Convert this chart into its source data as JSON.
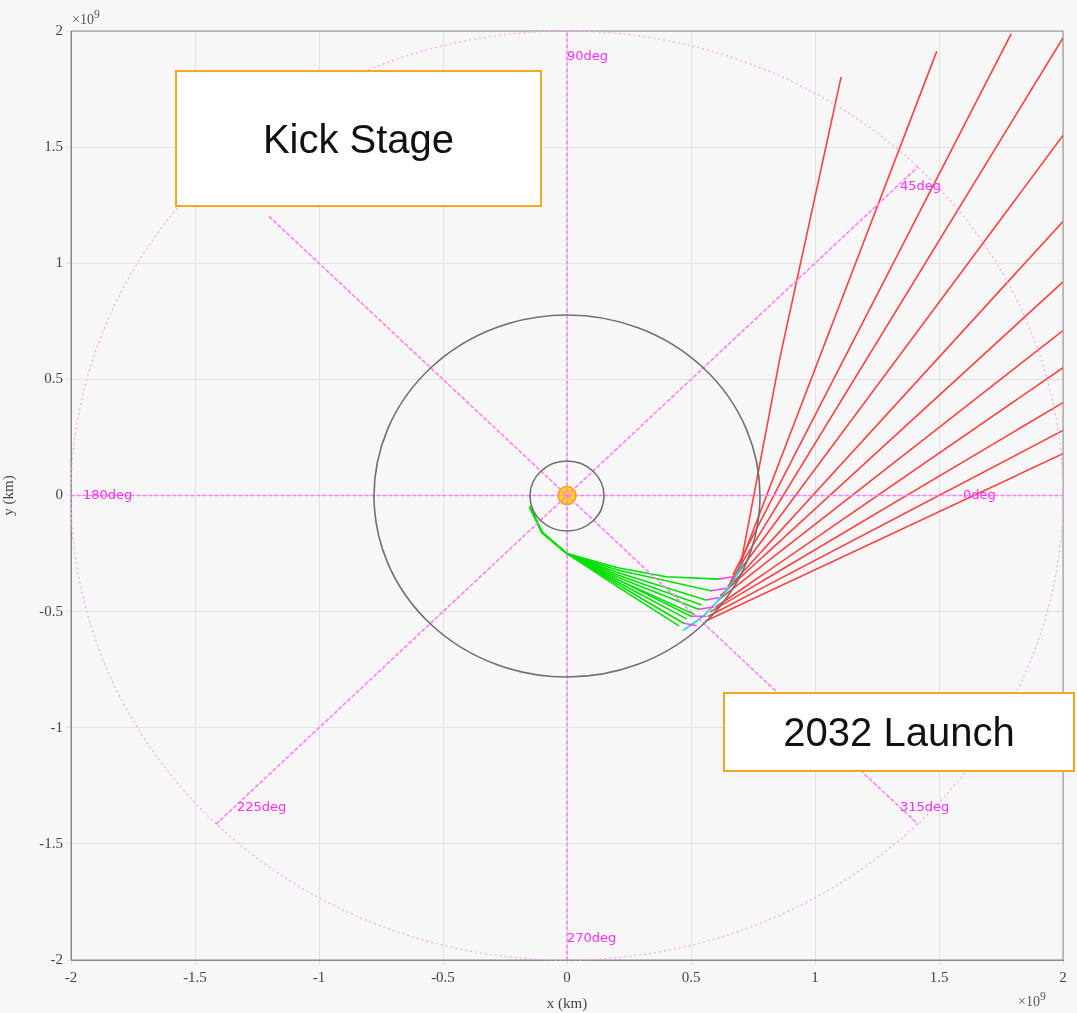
{
  "chart_data": {
    "type": "line",
    "xlabel": "x (km)",
    "ylabel": "y (km)",
    "xlim": [
      -2,
      2
    ],
    "ylim": [
      -2,
      2
    ],
    "xticks": [
      -2,
      -1.5,
      -1,
      -0.5,
      0,
      0.5,
      1,
      1.5,
      2
    ],
    "yticks": [
      -2,
      -1.5,
      -1,
      -0.5,
      0,
      0.5,
      1,
      1.5,
      2
    ],
    "grid": true,
    "legend": false,
    "marker": "none",
    "line_style": "solid",
    "annotations": [
      "×10$^{9}$",
      "×10$^{9}$",
      "Kick Stage",
      "2032 Launch",
      "0deg",
      "45deg",
      "90deg",
      "180deg",
      "225deg",
      "270deg",
      "315deg"
    ],
    "series": [
      {
        "color": "#ff80ff",
        "line_style": "dotted",
        "x": [
          0,
          0
        ],
        "values": [
          -2,
          2
        ]
      },
      {
        "color": "#ff80ff",
        "line_style": "dotted",
        "x": [
          -2,
          2
        ],
        "values": [
          0,
          0
        ]
      },
      {
        "color": "#ff80ff",
        "line_style": "dotted",
        "x": [
          -1.414,
          1.414
        ],
        "values": [
          -1.414,
          1.414
        ]
      },
      {
        "color": "#ff80ff",
        "line_style": "dotted",
        "x": [
          -1.2,
          1.414
        ],
        "values": [
          1.2,
          -1.414
        ]
      },
      {
        "color": "#00e000",
        "x": [
          -0.15,
          -0.1,
          0,
          0.2,
          0.4,
          0.61
        ],
        "values": [
          -0.05,
          -0.16,
          -0.25,
          -0.31,
          -0.35,
          -0.36
        ]
      },
      {
        "color": "#00e000",
        "x": [
          -0.15,
          -0.1,
          0,
          0.2,
          0.58
        ],
        "values": [
          -0.05,
          -0.16,
          -0.25,
          -0.32,
          -0.41
        ]
      },
      {
        "color": "#00e000",
        "x": [
          -0.15,
          -0.1,
          0,
          0.2,
          0.56
        ],
        "values": [
          -0.05,
          -0.16,
          -0.25,
          -0.33,
          -0.45
        ]
      },
      {
        "color": "#00e000",
        "x": [
          -0.15,
          -0.1,
          0,
          0.2,
          0.54
        ],
        "values": [
          -0.05,
          -0.16,
          -0.25,
          -0.34,
          -0.47
        ]
      },
      {
        "color": "#00e000",
        "x": [
          -0.15,
          -0.1,
          0,
          0.2,
          0.53
        ],
        "values": [
          -0.05,
          -0.16,
          -0.25,
          -0.35,
          -0.49
        ]
      },
      {
        "color": "#00e000",
        "x": [
          -0.15,
          -0.1,
          0,
          0.2,
          0.51
        ],
        "values": [
          -0.05,
          -0.16,
          -0.25,
          -0.36,
          -0.51
        ]
      },
      {
        "color": "#00e000",
        "x": [
          -0.15,
          -0.1,
          0,
          0.2,
          0.5
        ],
        "values": [
          -0.05,
          -0.16,
          -0.25,
          -0.36,
          -0.52
        ]
      },
      {
        "color": "#00e000",
        "x": [
          -0.15,
          -0.1,
          0,
          0.2,
          0.48
        ],
        "values": [
          -0.05,
          -0.16,
          -0.25,
          -0.37,
          -0.53
        ]
      },
      {
        "color": "#00e000",
        "x": [
          -0.15,
          -0.1,
          0,
          0.2,
          0.47
        ],
        "values": [
          -0.05,
          -0.16,
          -0.25,
          -0.38,
          -0.55
        ]
      },
      {
        "color": "#00e000",
        "x": [
          -0.15,
          -0.1,
          0,
          0.2,
          0.45
        ],
        "values": [
          -0.05,
          -0.16,
          -0.25,
          -0.39,
          -0.56
        ]
      },
      {
        "color": "#ff40ff",
        "x": [
          0.61,
          0.67
        ],
        "values": [
          -0.36,
          -0.35
        ]
      },
      {
        "color": "#ff40ff",
        "x": [
          0.58,
          0.64
        ],
        "values": [
          -0.41,
          -0.4
        ]
      },
      {
        "color": "#ff40ff",
        "x": [
          0.56,
          0.61
        ],
        "values": [
          -0.45,
          -0.44
        ]
      },
      {
        "color": "#ff40ff",
        "x": [
          0.53,
          0.59
        ],
        "values": [
          -0.49,
          -0.48
        ]
      },
      {
        "color": "#ff40ff",
        "x": [
          0.5,
          0.56
        ],
        "values": [
          -0.52,
          -0.52
        ]
      },
      {
        "color": "#ff40ff",
        "x": [
          0.47,
          0.52
        ],
        "values": [
          -0.55,
          -0.56
        ]
      },
      {
        "color": "#00e0e0",
        "x": [
          0.47,
          0.55,
          0.62,
          0.67,
          0.71
        ],
        "values": [
          -0.58,
          -0.52,
          -0.44,
          -0.37,
          -0.29
        ]
      },
      {
        "color": "#ff4040",
        "x": [
          0.7,
          0.86,
          1.105
        ],
        "values": [
          -0.3,
          0.6,
          1.8
        ]
      },
      {
        "color": "#ff4040",
        "x": [
          0.69,
          1.49
        ],
        "values": [
          -0.32,
          1.91
        ]
      },
      {
        "color": "#ff4040",
        "x": [
          0.67,
          1.79
        ],
        "values": [
          -0.34,
          1.985
        ]
      },
      {
        "color": "#ff4040",
        "x": [
          0.66,
          2
        ],
        "values": [
          -0.37,
          1.97
        ]
      },
      {
        "color": "#ff4040",
        "x": [
          0.65,
          2
        ],
        "values": [
          -0.39,
          1.55
        ]
      },
      {
        "color": "#ff4040",
        "x": [
          0.64,
          2
        ],
        "values": [
          -0.41,
          1.18
        ]
      },
      {
        "color": "#ff4040",
        "x": [
          0.62,
          2
        ],
        "values": [
          -0.43,
          0.92
        ]
      },
      {
        "color": "#ff4040",
        "x": [
          0.61,
          2
        ],
        "values": [
          -0.45,
          0.71
        ]
      },
      {
        "color": "#ff4040",
        "x": [
          0.6,
          2
        ],
        "values": [
          -0.48,
          0.55
        ]
      },
      {
        "color": "#ff4040",
        "x": [
          0.58,
          2
        ],
        "values": [
          -0.5,
          0.4
        ]
      },
      {
        "color": "#ff4040",
        "x": [
          0.57,
          2
        ],
        "values": [
          -0.52,
          0.28
        ]
      },
      {
        "color": "#ff4040",
        "x": [
          0.56,
          2
        ],
        "values": [
          -0.54,
          0.18
        ]
      },
      {
        "type": "scatter",
        "marker": "circle",
        "color": "#ffd700",
        "x": [
          0
        ],
        "values": [
          0
        ]
      }
    ]
  }
}
